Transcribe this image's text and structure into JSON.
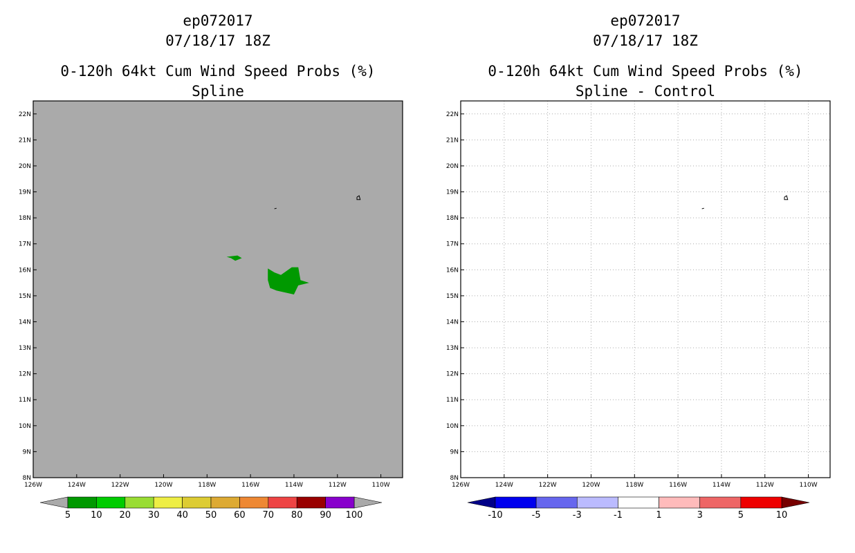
{
  "left_panel": {
    "title_line1": "ep072017",
    "title_line2": "07/18/17 18Z",
    "title_line3": "0-120h 64kt Cum Wind Speed Probs (%)",
    "title_line4": "Spline"
  },
  "right_panel": {
    "title_line1": "ep072017",
    "title_line2": "07/18/17 18Z",
    "title_line3": "0-120h 64kt Cum Wind Speed Probs (%)",
    "title_line4": "Spline - Control"
  },
  "chart_data": [
    {
      "type": "heatmap",
      "name": "Spline",
      "background_color": "#aaaaaa",
      "x_ticks": [
        "126W",
        "124W",
        "122W",
        "120W",
        "118W",
        "116W",
        "114W",
        "112W",
        "110W"
      ],
      "y_ticks": [
        "8N",
        "9N",
        "10N",
        "11N",
        "12N",
        "13N",
        "14N",
        "15N",
        "16N",
        "17N",
        "18N",
        "19N",
        "20N",
        "21N",
        "22N"
      ],
      "xlim": [
        -126,
        -109
      ],
      "ylim": [
        8,
        22.5
      ],
      "grid": false,
      "regions": [
        {
          "level": "5-10",
          "color": "#009900",
          "lonlat": [
            [
              -115.2,
              16.05
            ],
            [
              -114.9,
              15.9
            ],
            [
              -114.6,
              15.8
            ],
            [
              -114.1,
              16.1
            ],
            [
              -113.8,
              16.1
            ],
            [
              -113.7,
              15.6
            ],
            [
              -113.3,
              15.5
            ],
            [
              -113.8,
              15.4
            ],
            [
              -114.0,
              15.05
            ],
            [
              -114.8,
              15.2
            ],
            [
              -115.1,
              15.3
            ],
            [
              -115.2,
              15.6
            ]
          ]
        },
        {
          "level": "5-10",
          "color": "#009900",
          "lonlat": [
            [
              -117.1,
              16.5
            ],
            [
              -116.6,
              16.55
            ],
            [
              -116.4,
              16.45
            ],
            [
              -116.7,
              16.35
            ],
            [
              -116.9,
              16.45
            ]
          ]
        }
      ],
      "contours": [
        {
          "lonlat": [
            [
              -111.1,
              18.8
            ],
            [
              -111.0,
              18.85
            ],
            [
              -110.95,
              18.7
            ],
            [
              -111.1,
              18.7
            ],
            [
              -111.1,
              18.8
            ]
          ]
        },
        {
          "lonlat": [
            [
              -114.9,
              18.35
            ],
            [
              -114.8,
              18.37
            ]
          ]
        }
      ],
      "colorbar": {
        "labels": [
          "5",
          "10",
          "20",
          "30",
          "40",
          "50",
          "60",
          "70",
          "80",
          "90",
          "100"
        ],
        "colors": [
          "#009900",
          "#00cc00",
          "#99dd33",
          "#eeee44",
          "#ddcc33",
          "#ddaa33",
          "#ee8833",
          "#ee4444",
          "#990000",
          "#8800cc"
        ],
        "end_colors": [
          "#aaaaaa",
          "#aaaaaa"
        ]
      }
    },
    {
      "type": "heatmap",
      "name": "Spline - Control",
      "background_color": "#ffffff",
      "x_ticks": [
        "126W",
        "124W",
        "122W",
        "120W",
        "118W",
        "116W",
        "114W",
        "112W",
        "110W"
      ],
      "y_ticks": [
        "8N",
        "9N",
        "10N",
        "11N",
        "12N",
        "13N",
        "14N",
        "15N",
        "16N",
        "17N",
        "18N",
        "19N",
        "20N",
        "21N",
        "22N"
      ],
      "xlim": [
        -126,
        -109
      ],
      "ylim": [
        8,
        22.5
      ],
      "grid": true,
      "contours": [
        {
          "lonlat": [
            [
              -111.1,
              18.8
            ],
            [
              -111.0,
              18.85
            ],
            [
              -110.95,
              18.7
            ],
            [
              -111.1,
              18.7
            ],
            [
              -111.1,
              18.8
            ]
          ]
        },
        {
          "lonlat": [
            [
              -114.9,
              18.35
            ],
            [
              -114.8,
              18.37
            ]
          ]
        }
      ],
      "colorbar": {
        "labels": [
          "-10",
          "-5",
          "-3",
          "-1",
          "1",
          "3",
          "5",
          "10"
        ],
        "colors": [
          "#0000ee",
          "#6666ee",
          "#bbbbff",
          "#ffffff",
          "#ffbbbb",
          "#ee6666",
          "#ee0000"
        ],
        "end_colors": [
          "#000088",
          "#770000"
        ]
      }
    }
  ]
}
